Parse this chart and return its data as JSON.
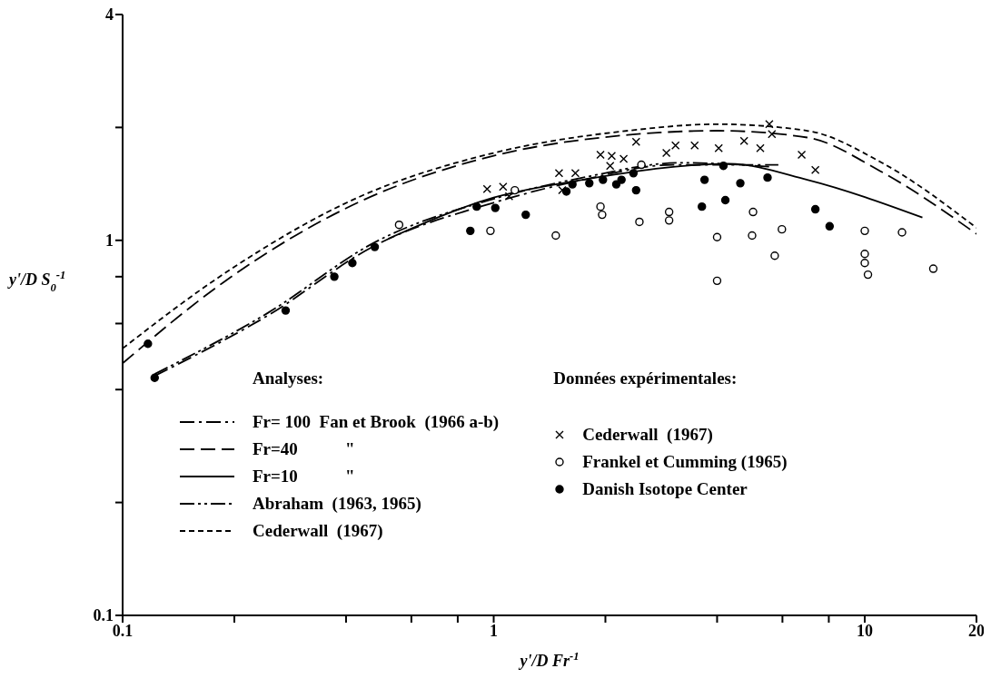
{
  "chart_data": {
    "type": "line",
    "xlabel": "y'/D Fr$^{-1}$",
    "ylabel": "y'/D S$_{0}$$^{-1}$",
    "log": "xy",
    "xlim": [
      0.1,
      20
    ],
    "ylim": [
      0.1,
      4
    ],
    "xticks": [
      0.1,
      {
        "value": 0.2,
        "label": null
      },
      {
        "value": 0.4,
        "label": null
      },
      {
        "value": 0.6,
        "label": null
      },
      {
        "value": 0.8,
        "label": null
      },
      1,
      {
        "value": 2,
        "label": null
      },
      {
        "value": 4,
        "label": null
      },
      {
        "value": 6,
        "label": null
      },
      {
        "value": 8,
        "label": null
      },
      10,
      20
    ],
    "yticks": [
      0.1,
      {
        "value": 0.2,
        "label": null
      },
      {
        "value": 0.4,
        "label": null
      },
      {
        "value": 0.6,
        "label": null
      },
      {
        "value": 0.8,
        "label": null
      },
      1,
      {
        "value": 2,
        "label": null
      },
      4
    ],
    "legend": "bottom",
    "annotations": [
      "Analyses:",
      "Données expérimentales:"
    ],
    "series": [
      {
        "name": "Fr= 100  Fan et Brook  (1966 a-b)",
        "line_style": "dashdot",
        "marker": "none",
        "color": "#000000",
        "x": [
          0.122,
          0.246,
          0.48,
          1.0,
          1.74,
          3.04,
          5.85
        ],
        "values": [
          0.435,
          0.63,
          0.97,
          1.26,
          1.45,
          1.59,
          1.59
        ]
      },
      {
        "name": "Fr=40           \"",
        "line_style": "longdash",
        "marker": "none",
        "color": "#000000",
        "x": [
          0.1,
          0.186,
          0.43,
          1.0,
          2.3,
          4.0,
          7.0,
          11,
          20
        ],
        "values": [
          0.47,
          0.77,
          1.26,
          1.68,
          1.91,
          1.96,
          1.88,
          1.53,
          1.04
        ]
      },
      {
        "name": "Fr=10           \"",
        "line_style": "solid",
        "marker": "none",
        "color": "#000000",
        "x": [
          0.52,
          1.0,
          1.74,
          4.3,
          7.0,
          14.3
        ],
        "values": [
          1.01,
          1.3,
          1.45,
          1.6,
          1.45,
          1.15
        ]
      },
      {
        "name": "Abraham  (1963, 1965)",
        "line_style": "dashdotdot",
        "marker": "none",
        "color": "#000000",
        "x": [
          0.122,
          0.246,
          0.48,
          1.0,
          1.74,
          3.2,
          5.6
        ],
        "values": [
          0.44,
          0.64,
          0.99,
          1.29,
          1.47,
          1.61,
          1.57
        ]
      },
      {
        "name": "Cederwall  (1967)",
        "line_style": "dashed",
        "marker": "none",
        "color": "#000000",
        "x": [
          0.1,
          0.186,
          0.43,
          1.0,
          2.3,
          4.0,
          7.0,
          11,
          20
        ],
        "values": [
          0.515,
          0.81,
          1.3,
          1.71,
          1.96,
          2.04,
          1.96,
          1.62,
          1.08
        ]
      },
      {
        "name": "Cederwall  (1967)",
        "type": "scatter",
        "marker": "cross",
        "color": "#000000",
        "x": [
          0.96,
          1.06,
          1.1,
          1.5,
          1.66,
          1.53,
          1.94,
          2.08,
          2.24,
          2.06,
          2.42,
          2.92,
          3.09,
          3.48,
          4.04,
          4.73,
          5.23,
          5.53,
          5.62,
          6.76,
          7.36
        ],
        "values": [
          1.37,
          1.39,
          1.31,
          1.51,
          1.51,
          1.36,
          1.69,
          1.68,
          1.65,
          1.58,
          1.83,
          1.71,
          1.79,
          1.79,
          1.76,
          1.84,
          1.76,
          2.04,
          1.92,
          1.69,
          1.54
        ]
      },
      {
        "name": "Frankel et Cumming (1965)",
        "type": "scatter",
        "marker": "circle",
        "color": "#ffffff",
        "x": [
          0.98,
          0.556,
          1.14,
          1.47,
          1.94,
          1.96,
          2.47,
          2.97,
          2.97,
          4.0,
          4.0,
          5.0,
          4.97,
          5.98,
          5.72,
          10.0,
          10.0,
          10.0,
          10.2,
          12.6,
          15.3,
          2.5
        ],
        "values": [
          1.06,
          1.1,
          1.36,
          1.03,
          1.23,
          1.17,
          1.12,
          1.19,
          1.13,
          1.02,
          0.78,
          1.19,
          1.03,
          1.07,
          0.91,
          1.06,
          0.92,
          0.87,
          0.81,
          1.05,
          0.84,
          1.59
        ]
      },
      {
        "name": "Danish Isotope Center",
        "type": "scatter",
        "marker": "circle",
        "color": "#000000",
        "x": [
          0.117,
          0.122,
          0.275,
          0.372,
          0.416,
          0.478,
          0.865,
          0.9,
          1.01,
          1.22,
          1.57,
          1.63,
          1.81,
          1.97,
          2.14,
          2.21,
          2.38,
          2.42,
          3.7,
          3.64,
          4.21,
          4.16,
          4.62,
          5.47,
          7.36,
          8.04
        ],
        "values": [
          0.53,
          0.43,
          0.65,
          0.8,
          0.87,
          0.96,
          1.06,
          1.23,
          1.22,
          1.17,
          1.35,
          1.41,
          1.42,
          1.45,
          1.41,
          1.45,
          1.51,
          1.36,
          1.45,
          1.23,
          1.28,
          1.58,
          1.42,
          1.47,
          1.21,
          1.09
        ]
      }
    ]
  }
}
